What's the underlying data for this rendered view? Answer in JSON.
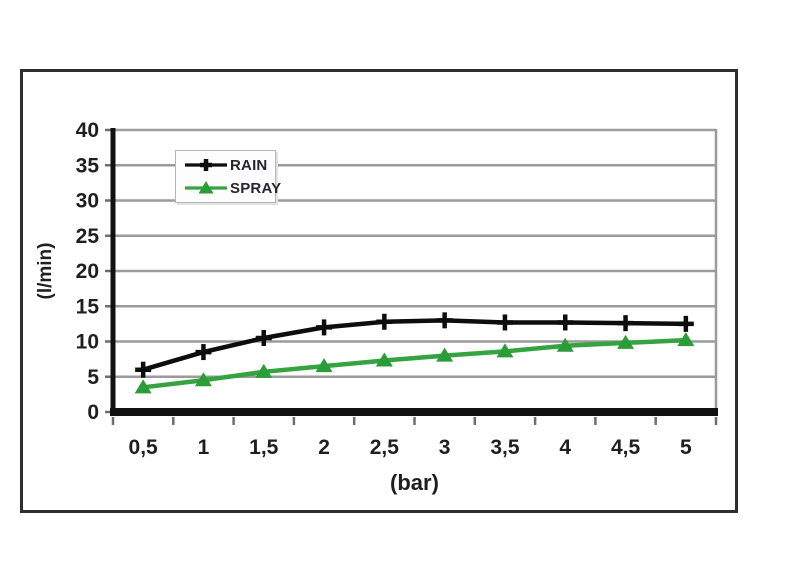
{
  "chart_data": {
    "type": "line",
    "title": "",
    "xlabel": "(bar)",
    "ylabel": "(l/min)",
    "x": [
      0.5,
      1,
      1.5,
      2,
      2.5,
      3,
      3.5,
      4,
      4.5,
      5
    ],
    "x_tick_labels": [
      "0,5",
      "1",
      "1,5",
      "2",
      "2,5",
      "3",
      "3,5",
      "4",
      "4,5",
      "5"
    ],
    "y_ticks": [
      0,
      5,
      10,
      15,
      20,
      25,
      30,
      35,
      40
    ],
    "ylim": [
      0,
      40
    ],
    "grid": true,
    "legend_position": "top-left-inside",
    "series": [
      {
        "name": "RAIN",
        "color": "#0d0d0d",
        "marker": "plus",
        "marker_color": "#0d0d0d",
        "values": [
          6,
          8.5,
          10.5,
          12,
          12.8,
          13,
          12.7,
          12.7,
          12.6,
          12.5
        ]
      },
      {
        "name": "SPRAY",
        "color": "#35a33f",
        "marker": "triangle-up",
        "marker_color": "#2a9c38",
        "values": [
          3.5,
          4.5,
          5.7,
          6.5,
          7.3,
          8,
          8.6,
          9.4,
          9.8,
          10.2
        ]
      }
    ],
    "colors": {
      "gridline": "#9b9b9b",
      "axis": "#111111",
      "tick": "#6e6e6e",
      "text": "#1f1f1f",
      "frame_border": "#2e2e2e",
      "legend_border": "#b5b5b5"
    }
  }
}
